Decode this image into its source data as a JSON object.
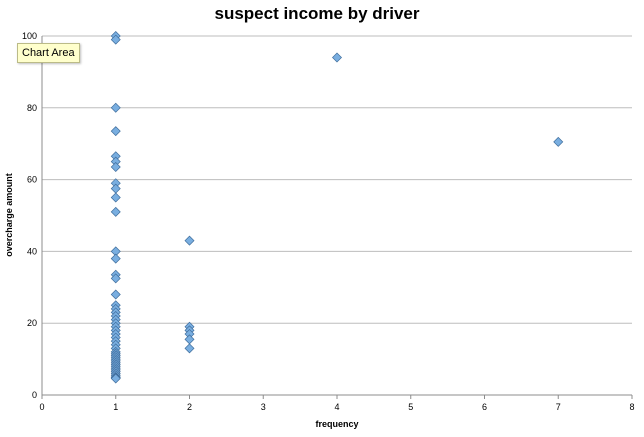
{
  "chart_data": {
    "type": "scatter",
    "title": "suspect income by driver",
    "xlabel": "frequency",
    "ylabel": "overcharge amount",
    "xlim": [
      0,
      8
    ],
    "ylim": [
      0,
      100
    ],
    "xticks": [
      "0",
      "1",
      "2",
      "3",
      "4",
      "5",
      "6",
      "7",
      "8"
    ],
    "yticks": [
      "0",
      "20",
      "40",
      "60",
      "80",
      "100"
    ],
    "grid": "horizontal",
    "marker_color": "#79aee0",
    "marker_edge": "#3f6d9c",
    "points": [
      [
        1,
        100
      ],
      [
        1,
        99
      ],
      [
        1,
        80
      ],
      [
        1,
        73.5
      ],
      [
        1,
        66.5
      ],
      [
        1,
        65
      ],
      [
        1,
        63.5
      ],
      [
        1,
        59
      ],
      [
        1,
        57.5
      ],
      [
        1,
        55
      ],
      [
        1,
        51
      ],
      [
        1,
        40
      ],
      [
        1,
        38
      ],
      [
        1,
        33.5
      ],
      [
        1,
        32.5
      ],
      [
        1,
        28
      ],
      [
        1,
        25
      ],
      [
        1,
        24
      ],
      [
        1,
        23
      ],
      [
        1,
        22
      ],
      [
        1,
        21
      ],
      [
        1,
        20
      ],
      [
        1,
        19
      ],
      [
        1,
        18
      ],
      [
        1,
        17
      ],
      [
        1,
        16
      ],
      [
        1,
        15
      ],
      [
        1,
        14
      ],
      [
        1,
        13
      ],
      [
        1,
        12
      ],
      [
        1,
        11.5
      ],
      [
        1,
        11
      ],
      [
        1,
        10.5
      ],
      [
        1,
        10
      ],
      [
        1,
        9.5
      ],
      [
        1,
        9
      ],
      [
        1,
        8.5
      ],
      [
        1,
        8
      ],
      [
        1,
        7.5
      ],
      [
        1,
        7
      ],
      [
        1,
        6.5
      ],
      [
        1,
        6
      ],
      [
        1,
        5.5
      ],
      [
        1,
        5
      ],
      [
        1,
        4.8
      ],
      [
        1,
        4.6
      ],
      [
        2,
        43
      ],
      [
        2,
        19
      ],
      [
        2,
        18
      ],
      [
        2,
        17
      ],
      [
        2,
        15.5
      ],
      [
        2,
        13
      ],
      [
        4,
        94
      ],
      [
        7,
        70.5
      ]
    ]
  },
  "tooltip": {
    "text": "Chart Area"
  }
}
